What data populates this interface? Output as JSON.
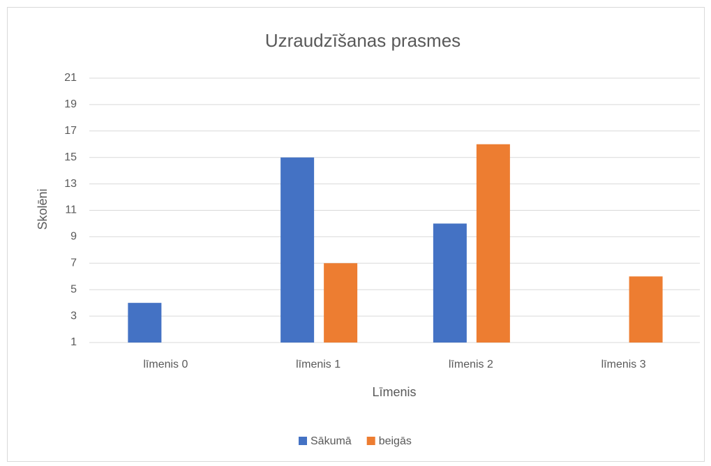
{
  "chart_data": {
    "type": "bar",
    "title": "Uzraudzīšanas prasmes",
    "x_label": "Līmenis",
    "y_label": "Skolēni",
    "categories": [
      "līmenis 0",
      "līmenis 1",
      "līmenis 2",
      "līmenis 3"
    ],
    "series": [
      {
        "name": "Sākumā",
        "color": "#4472c4",
        "values": [
          4,
          15,
          10,
          1
        ]
      },
      {
        "name": "beigās",
        "color": "#ed7d31",
        "values": [
          1,
          7,
          16,
          6
        ]
      }
    ],
    "ylim": [
      1,
      21
    ],
    "yticks": [
      1,
      3,
      5,
      7,
      9,
      11,
      13,
      15,
      17,
      19,
      21
    ],
    "grid": true,
    "legend": "bottom"
  }
}
